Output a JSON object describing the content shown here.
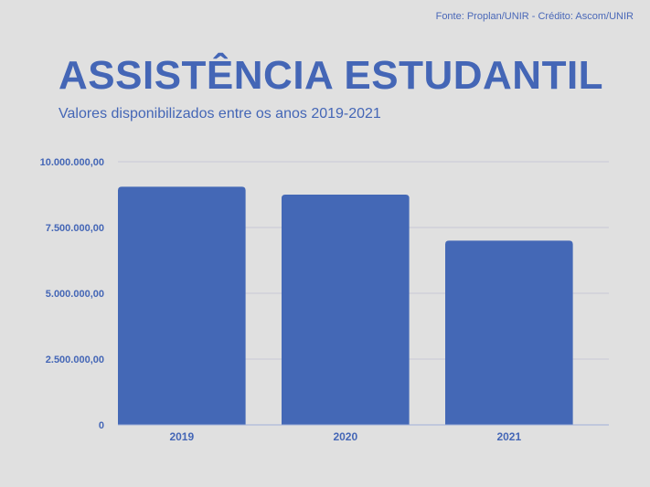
{
  "header": {
    "credit": "Fonte: Proplan/UNIR - Crédito: Ascom/UNIR"
  },
  "colors": {
    "background": "#e0e0e0",
    "bar": "#4468b6",
    "text": "#4466b6",
    "grid": "#c9c9d6"
  },
  "chart_data": {
    "type": "bar",
    "title": "ASSISTÊNCIA ESTUDANTIL",
    "subtitle": "Valores disponibilizados entre os anos 2019-2021",
    "xlabel": "",
    "ylabel": "",
    "categories": [
      "2019",
      "2020",
      "2021"
    ],
    "values": [
      9050000,
      8750000,
      7000000
    ],
    "ylim": [
      0,
      10000000
    ],
    "yticks": [
      0,
      2500000,
      5000000,
      7500000,
      10000000
    ],
    "ytick_labels": [
      "0",
      "2.500.000,00",
      "5.000.000,00",
      "7.500.000,00",
      "10.000.000,00"
    ],
    "grid": true,
    "legend": "none"
  }
}
